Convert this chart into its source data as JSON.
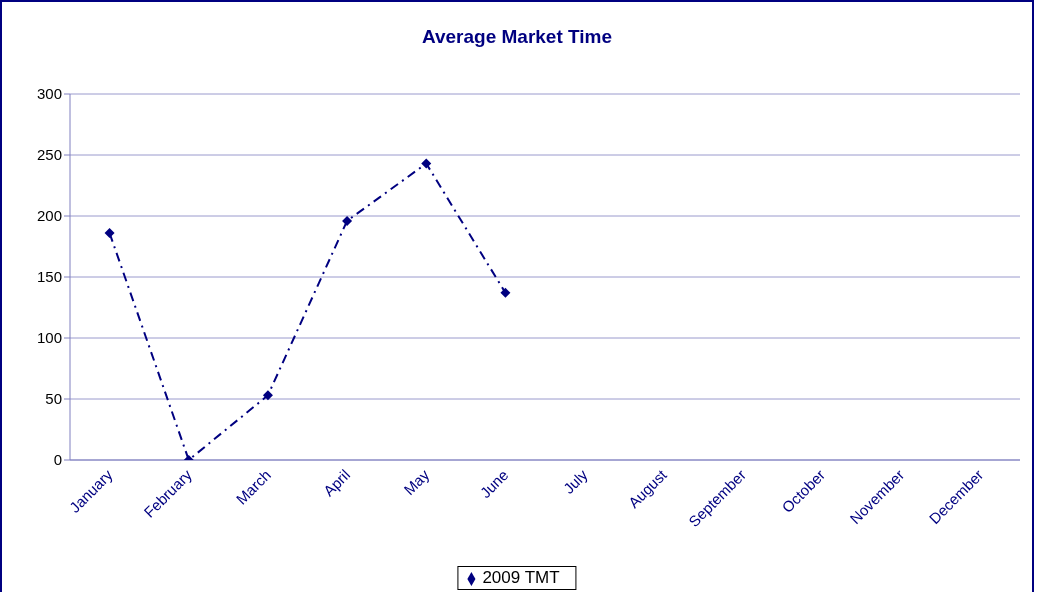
{
  "chart_data": {
    "type": "line",
    "title": "Average Market Time",
    "categories": [
      "January",
      "February",
      "March",
      "April",
      "May",
      "June",
      "July",
      "August",
      "September",
      "October",
      "November",
      "December"
    ],
    "series": [
      {
        "name": "2009 TMT",
        "color": "#000080",
        "values": [
          186,
          0,
          53,
          196,
          243,
          137,
          null,
          null,
          null,
          null,
          null,
          null
        ]
      }
    ],
    "ylim": [
      0,
      300
    ],
    "yticks": [
      0,
      50,
      100,
      150,
      200,
      250,
      300
    ],
    "grid": "y",
    "legend": "bottom",
    "marker": "diamond",
    "line_style": "dashed"
  }
}
